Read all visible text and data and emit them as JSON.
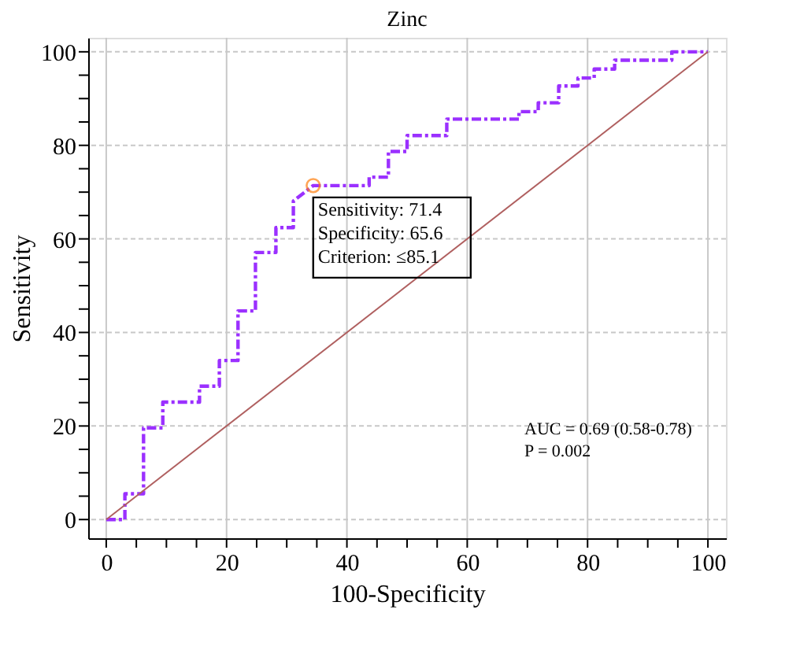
{
  "chart_data": {
    "type": "line",
    "title": "Zinc",
    "xlabel": "100-Specificity",
    "ylabel": "Sensitivity",
    "xlim": [
      -3,
      103
    ],
    "ylim": [
      -4,
      103
    ],
    "xticks": [
      0,
      {
        "value": 5,
        "label": null
      },
      {
        "value": 10,
        "label": null
      },
      {
        "value": 15,
        "label": null
      },
      20,
      {
        "value": 25,
        "label": null
      },
      {
        "value": 30,
        "label": null
      },
      {
        "value": 35,
        "label": null
      },
      40,
      {
        "value": 45,
        "label": null
      },
      {
        "value": 50,
        "label": null
      },
      {
        "value": 55,
        "label": null
      },
      60,
      {
        "value": 65,
        "label": null
      },
      {
        "value": 70,
        "label": null
      },
      {
        "value": 75,
        "label": null
      },
      80,
      {
        "value": 85,
        "label": null
      },
      {
        "value": 90,
        "label": null
      },
      {
        "value": 95,
        "label": null
      },
      100
    ],
    "yticks": [
      0,
      {
        "value": 5,
        "label": null
      },
      {
        "value": 10,
        "label": null
      },
      {
        "value": 15,
        "label": null
      },
      20,
      {
        "value": 25,
        "label": null
      },
      {
        "value": 30,
        "label": null
      },
      {
        "value": 35,
        "label": null
      },
      40,
      {
        "value": 45,
        "label": null
      },
      {
        "value": 50,
        "label": null
      },
      {
        "value": 55,
        "label": null
      },
      60,
      {
        "value": 65,
        "label": null
      },
      {
        "value": 70,
        "label": null
      },
      {
        "value": 75,
        "label": null
      },
      80,
      {
        "value": 85,
        "label": null
      },
      {
        "value": 90,
        "label": null
      },
      {
        "value": 95,
        "label": null
      },
      100
    ],
    "grid": true,
    "series": [
      {
        "color": "#9b30ff",
        "line_style": "dashed",
        "x": [
          0,
          3.1,
          3.1,
          6.2,
          6.2,
          9.4,
          9.4,
          15.5,
          15.5,
          18.8,
          18.8,
          21.9,
          21.9,
          24.8,
          24.8,
          28.2,
          28.2,
          31.1,
          31.1,
          34.4,
          43.7,
          43.7,
          46.9,
          46.9,
          50.0,
          50.0,
          56.6,
          56.6,
          68.6,
          68.6,
          71.8,
          71.8,
          75.2,
          75.2,
          78.4,
          78.4,
          81.1,
          81.1,
          84.5,
          84.5,
          94.0,
          94.0,
          100
        ],
        "values": [
          0,
          0,
          5.5,
          5.5,
          19.6,
          19.6,
          25.1,
          25.1,
          28.5,
          28.5,
          34.0,
          34.0,
          44.6,
          44.6,
          57.1,
          57.1,
          62.4,
          62.4,
          68.1,
          71.4,
          71.4,
          73.2,
          73.2,
          78.7,
          78.7,
          82.1,
          82.1,
          85.6,
          85.6,
          87.2,
          87.2,
          89.1,
          89.1,
          92.7,
          92.7,
          94.4,
          94.4,
          96.3,
          96.3,
          98.2,
          98.2,
          100,
          100
        ]
      },
      {
        "type": "line",
        "color": "#b06060",
        "line_style": "solid",
        "x": [
          0,
          100
        ],
        "values": [
          0,
          100
        ]
      },
      {
        "type": "scatter",
        "color": "#ff7f0e",
        "marker": "circle",
        "x": [
          34.4
        ],
        "values": [
          71.4
        ]
      }
    ],
    "annotations": [
      {
        "text": "Sensitivity: 71.4\nSpecificity: 65.6\nCriterion: ≤85.1",
        "x": 34.4,
        "y": 71.4
      },
      "AUC = 0.69 (0.58-0.78)\nP = 0.002"
    ]
  }
}
